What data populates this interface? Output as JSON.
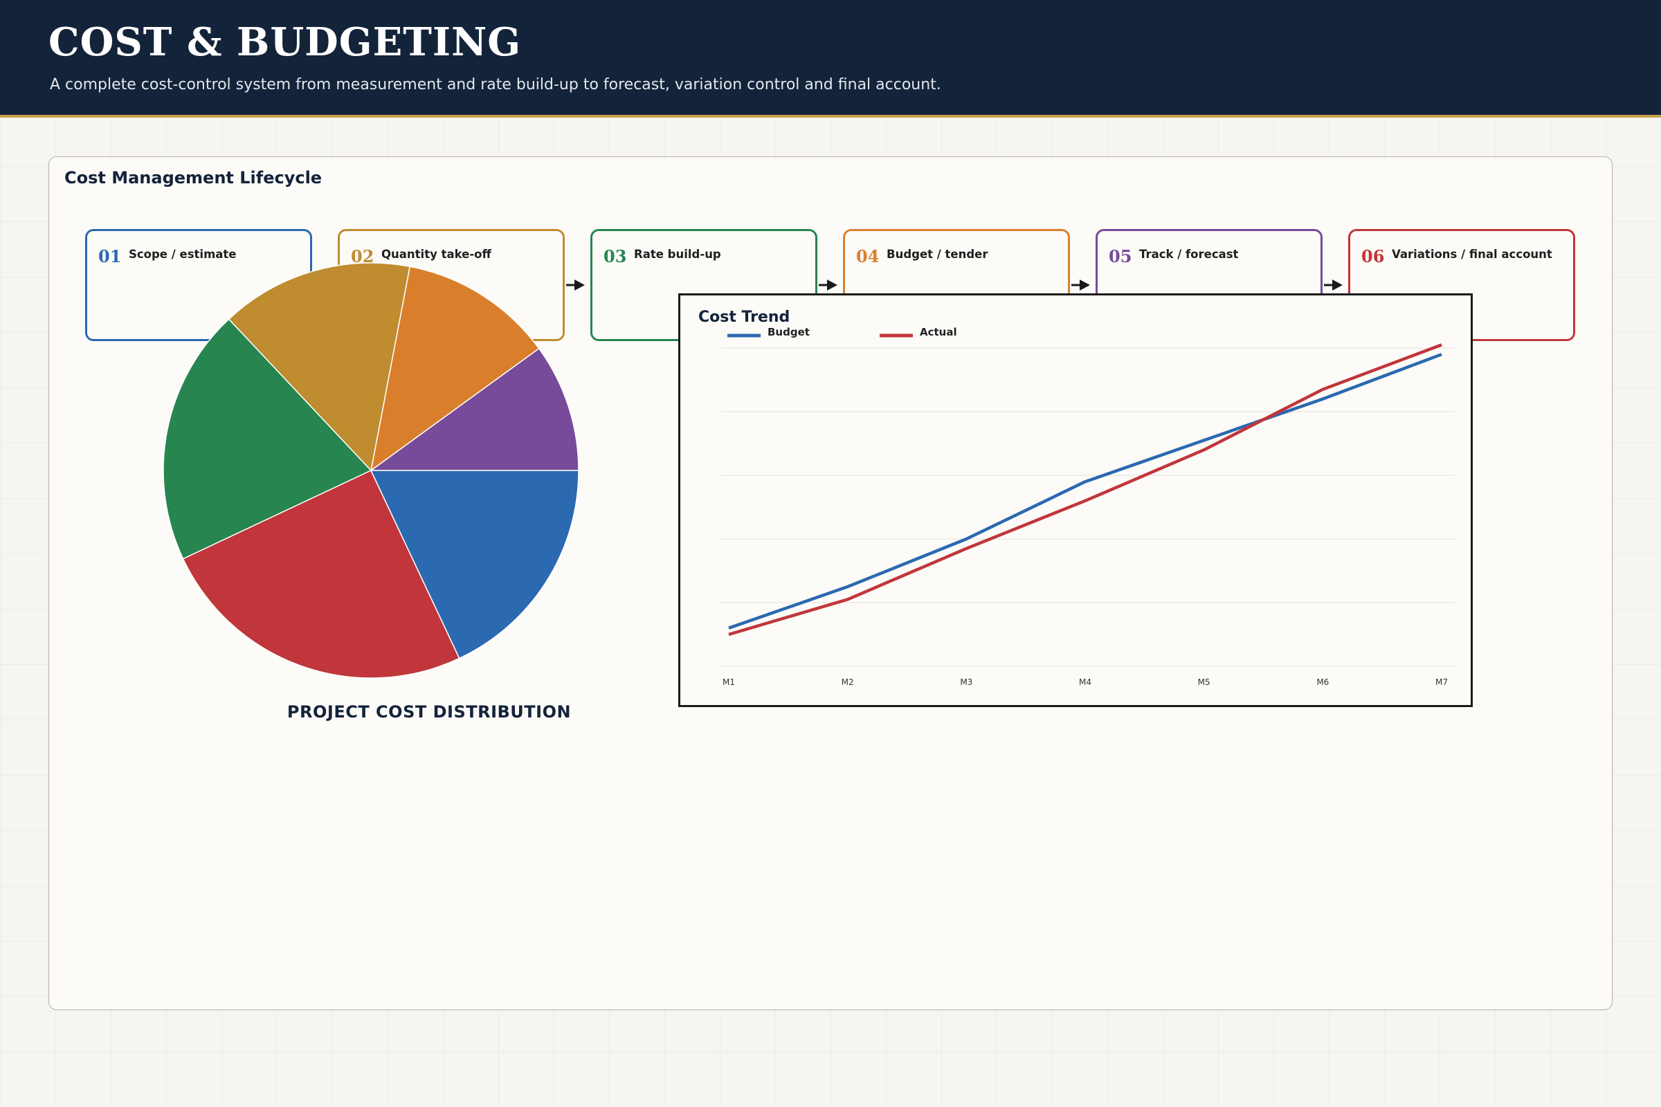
{
  "header": {
    "title": "COST & BUDGETING",
    "subtitle": "A complete cost-control system from measurement and rate build-up to forecast, variation control and final account."
  },
  "lifecycle": {
    "title": "Cost Management Lifecycle",
    "steps": [
      {
        "num": "01",
        "label": "Scope / estimate",
        "color": "#2b69b0"
      },
      {
        "num": "02",
        "label": "Quantity take-off",
        "color": "#bf8c2f"
      },
      {
        "num": "03",
        "label": "Rate build-up",
        "color": "#27854f"
      },
      {
        "num": "04",
        "label": "Budget / tender",
        "color": "#d97f2c"
      },
      {
        "num": "05",
        "label": "Track / forecast",
        "color": "#774a9a"
      },
      {
        "num": "06",
        "label": "Variations / final account",
        "color": "#c0363a"
      }
    ]
  },
  "chart_data": [
    {
      "type": "pie",
      "title": "PROJECT COST DISTRIBUTION",
      "slices": [
        {
          "value": 10,
          "color": "#774a9a"
        },
        {
          "value": 12,
          "color": "#d97f2c"
        },
        {
          "value": 15,
          "color": "#bf8c2f"
        },
        {
          "value": 20,
          "color": "#27854f"
        },
        {
          "value": 25,
          "color": "#c0363a"
        },
        {
          "value": 18,
          "color": "#2b69b0"
        }
      ]
    },
    {
      "type": "line",
      "title": "Cost Trend",
      "categories": [
        "M1",
        "M2",
        "M3",
        "M4",
        "M5",
        "M6",
        "M7"
      ],
      "ylim": [
        0,
        100
      ],
      "grid": true,
      "legend": "top-left",
      "series": [
        {
          "name": "Budget",
          "color": "#2b69b0",
          "values": [
            12,
            25,
            40,
            58,
            71,
            84,
            98
          ]
        },
        {
          "name": "Actual",
          "color": "#c0363a",
          "values": [
            10,
            21,
            37,
            52,
            68,
            87,
            101
          ]
        }
      ]
    }
  ]
}
